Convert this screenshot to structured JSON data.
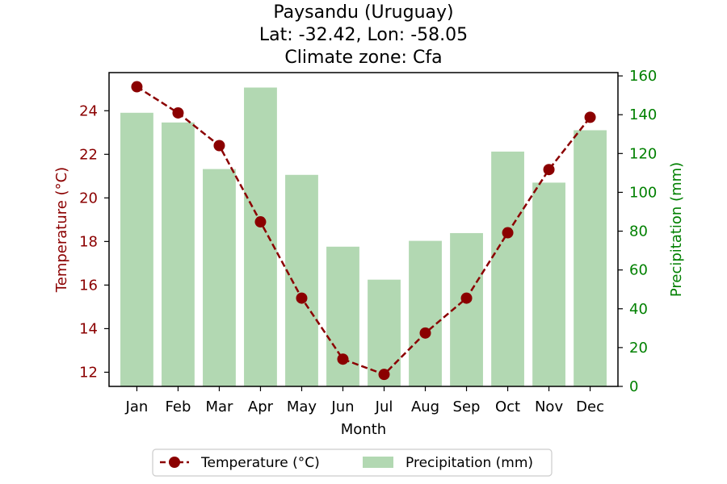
{
  "chart_data": {
    "type": "bar+line",
    "title_lines": [
      "Paysandu (Uruguay)",
      "Lat: -32.42, Lon: -58.05",
      "Climate zone: Cfa"
    ],
    "xlabel": "Month",
    "categories": [
      "Jan",
      "Feb",
      "Mar",
      "Apr",
      "May",
      "Jun",
      "Jul",
      "Aug",
      "Sep",
      "Oct",
      "Nov",
      "Dec"
    ],
    "series": [
      {
        "name": "Temperature (°C)",
        "kind": "line",
        "axis": "left",
        "color": "#8b0000",
        "values": [
          25.1,
          23.9,
          22.4,
          18.9,
          15.4,
          12.6,
          11.9,
          13.8,
          15.4,
          18.4,
          21.3,
          23.7
        ]
      },
      {
        "name": "Precipitation (mm)",
        "kind": "bar",
        "axis": "right",
        "color": "#b2d8b2",
        "values": [
          141,
          136,
          112,
          154,
          109,
          72,
          55,
          75,
          79,
          121,
          105,
          132
        ]
      }
    ],
    "left_axis": {
      "label": "Temperature (°C)",
      "color": "#8b0000",
      "range": [
        11.35,
        25.75
      ],
      "ticks": [
        "12",
        "14",
        "16",
        "18",
        "20",
        "22",
        "24"
      ]
    },
    "right_axis": {
      "label": "Precipitation (mm)",
      "color": "#008000",
      "range": [
        0,
        161.7
      ],
      "ticks": [
        "0",
        "20",
        "40",
        "60",
        "80",
        "100",
        "120",
        "140",
        "160"
      ]
    },
    "grid": false,
    "legend_position": "bottom-center"
  }
}
